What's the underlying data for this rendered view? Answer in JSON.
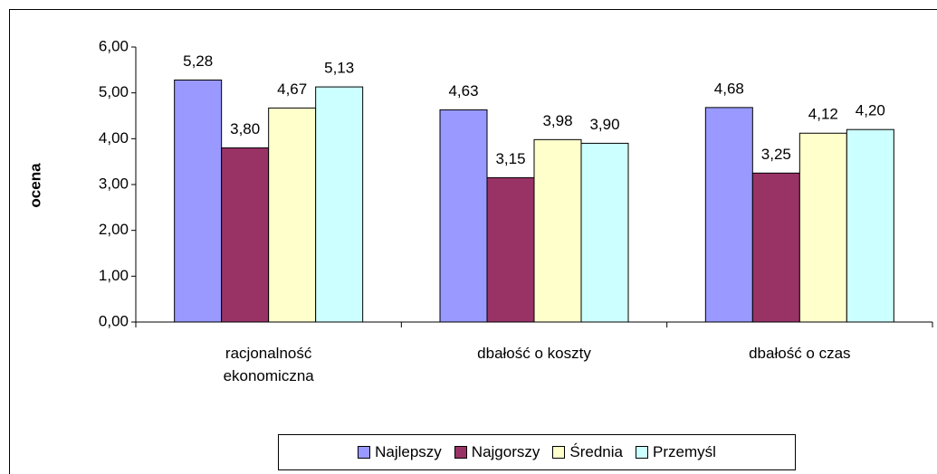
{
  "chart_data": {
    "type": "bar",
    "categories": [
      "racjonalność ekonomiczna",
      "dbałość o koszty",
      "dbałość o czas"
    ],
    "series": [
      {
        "name": "Najlepszy",
        "color": "#9999ff",
        "values": [
          5.28,
          4.63,
          4.68
        ],
        "value_labels": [
          "5,28",
          "4,63",
          "4,68"
        ]
      },
      {
        "name": "Najgorszy",
        "color": "#993366",
        "values": [
          3.8,
          3.15,
          3.25
        ],
        "value_labels": [
          "3,80",
          "3,15",
          "3,25"
        ]
      },
      {
        "name": "Średnia",
        "color": "#ffffcc",
        "values": [
          4.67,
          3.98,
          4.12
        ],
        "value_labels": [
          "4,67",
          "3,98",
          "4,12"
        ]
      },
      {
        "name": "Przemyśl",
        "color": "#ccffff",
        "values": [
          5.13,
          3.9,
          4.2
        ],
        "value_labels": [
          "5,13",
          "3,90",
          "4,20"
        ]
      }
    ],
    "y_label": "ocena",
    "ylim": [
      0,
      6
    ],
    "yticks": [
      {
        "value": 0,
        "label": "0,00"
      },
      {
        "value": 1,
        "label": "1,00"
      },
      {
        "value": 2,
        "label": "2,00"
      },
      {
        "value": 3,
        "label": "3,00"
      },
      {
        "value": 4,
        "label": "4,00"
      },
      {
        "value": 5,
        "label": "5,00"
      },
      {
        "value": 6,
        "label": "6,00"
      }
    ],
    "grid": false,
    "legend": "bottom"
  }
}
